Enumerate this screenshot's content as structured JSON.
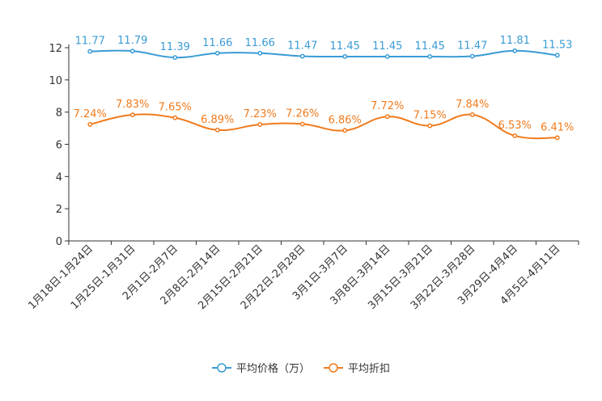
{
  "chart_data": {
    "type": "line",
    "title": "",
    "xlabel": "",
    "ylabel": "",
    "ylim": [
      0,
      12
    ],
    "yticks": [
      0,
      2,
      4,
      6,
      8,
      10,
      12
    ],
    "grid": false,
    "legend": "bottom-center",
    "categories": [
      "1月18日-1月24日",
      "1月25日-1月31日",
      "2月1日-2月7日",
      "2月8日-2月14日",
      "2月15日-2月21日",
      "2月22日-2月28日",
      "3月1日-3月7日",
      "3月8日-3月14日",
      "3月15日-3月21日",
      "3月22日-3月28日",
      "3月29日-4月4日",
      "4月5日-4月11日"
    ],
    "series": [
      {
        "name": "平均价格（万）",
        "color": "#3a9bd5",
        "values": [
          11.77,
          11.79,
          11.39,
          11.66,
          11.66,
          11.47,
          11.45,
          11.45,
          11.45,
          11.47,
          11.81,
          11.53
        ],
        "labels": [
          "11.77",
          "11.79",
          "11.39",
          "11.66",
          "11.66",
          "11.47",
          "11.45",
          "11.45",
          "11.45",
          "11.47",
          "11.81",
          "11.53"
        ]
      },
      {
        "name": "平均折扣",
        "color": "#f07b1d",
        "values": [
          7.24,
          7.83,
          7.65,
          6.89,
          7.23,
          7.26,
          6.86,
          7.72,
          7.15,
          7.84,
          6.53,
          6.41
        ],
        "labels": [
          "7.24%",
          "7.83%",
          "7.65%",
          "6.89%",
          "7.23%",
          "7.26%",
          "6.86%",
          "7.72%",
          "7.15%",
          "7.84%",
          "6.53%",
          "6.41%"
        ]
      }
    ]
  }
}
